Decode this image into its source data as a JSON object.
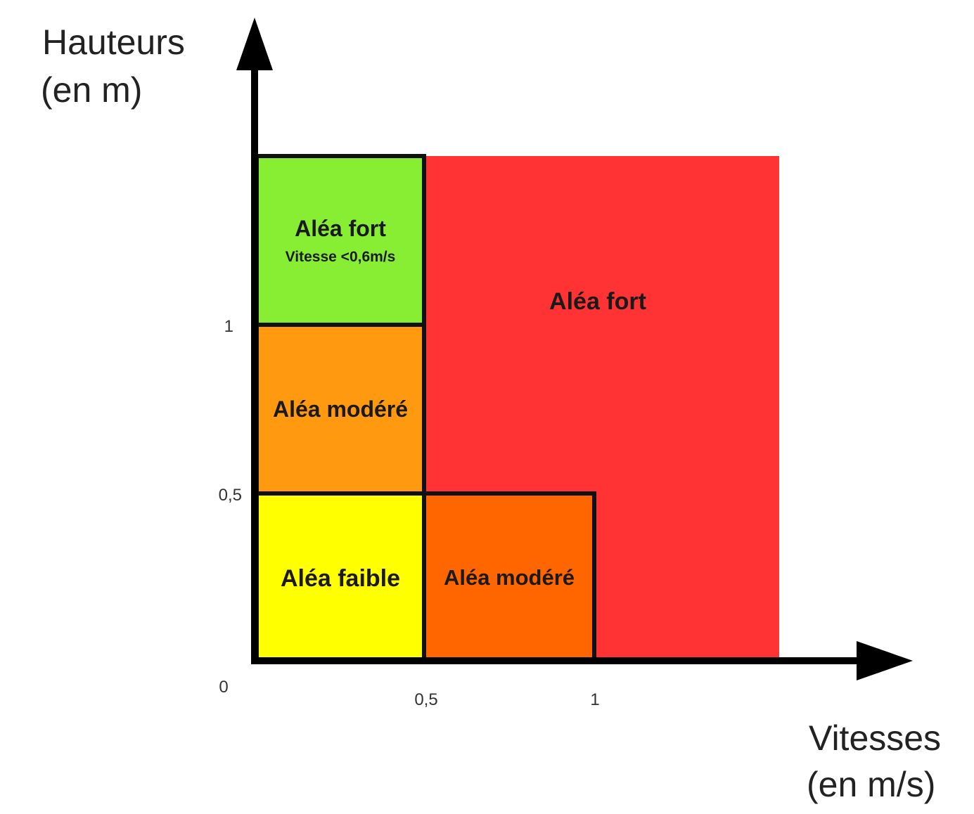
{
  "y_axis": {
    "title_line1": "Hauteurs",
    "title_line2": "(en m)"
  },
  "x_axis": {
    "title_line1": "Vitesses",
    "title_line2": "(en m/s)"
  },
  "ticks": {
    "origin": "0",
    "y_mid": "0,5",
    "y_top": "1",
    "x_mid": "0,5",
    "x_top": "1"
  },
  "zones": {
    "red": {
      "label": "Aléa fort",
      "color": "#ff3333"
    },
    "green": {
      "label": "Aléa fort",
      "sublabel": "Vitesse <0,6m/s",
      "color": "#88ee33"
    },
    "orange_upper": {
      "label": "Aléa modéré",
      "color": "#ff9a10"
    },
    "yellow": {
      "label": "Aléa faible",
      "color": "#ffff00"
    },
    "orange_lower": {
      "label": "Aléa modéré",
      "color": "#ff6600"
    }
  }
}
